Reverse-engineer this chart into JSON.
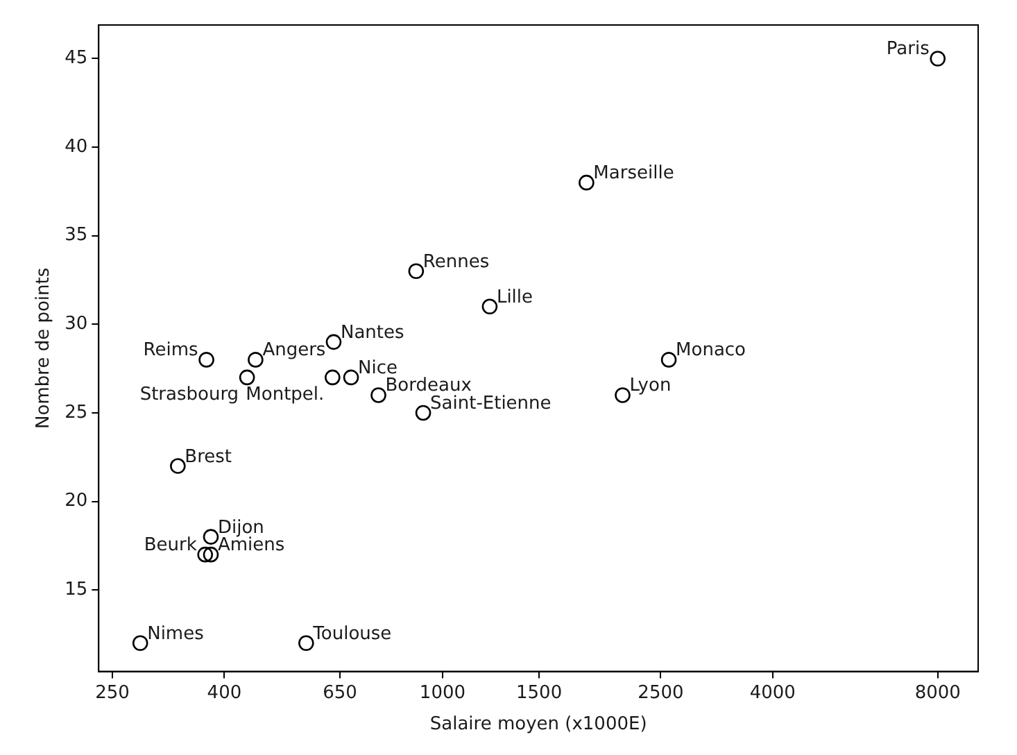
{
  "chart_data": {
    "type": "scatter",
    "xlabel": "Salaire moyen (x1000E)",
    "ylabel": "Nombre de points",
    "log": "x",
    "marker": "circle",
    "grid": false,
    "xlim": [
      236,
      9480
    ],
    "xticks": [
      250,
      400,
      650,
      1000,
      1500,
      2500,
      4000,
      8000
    ],
    "ylim": [
      10.4,
      46.9
    ],
    "yticks": [
      15,
      20,
      25,
      30,
      35,
      40,
      45
    ],
    "series": [
      {
        "color": "#000000",
        "x": [
          8000,
          1830,
          895,
          1219,
          2586,
          2130,
          371,
          456,
          633,
          440,
          630,
          681,
          764,
          922,
          329,
          378,
          378,
          369,
          281,
          564
        ],
        "values": [
          45,
          38,
          33,
          31,
          28,
          26,
          28,
          28,
          29,
          27,
          27,
          27,
          26,
          25,
          22,
          18,
          17,
          17,
          12,
          12
        ]
      }
    ],
    "annotations": [
      {
        "text": "Paris",
        "x": 8000,
        "y": 45
      },
      {
        "text": "Marseille",
        "x": 1830,
        "y": 38
      },
      {
        "text": "Rennes",
        "x": 895,
        "y": 33
      },
      {
        "text": "Lille",
        "x": 1219,
        "y": 31
      },
      {
        "text": "Monaco",
        "x": 2586,
        "y": 28
      },
      {
        "text": "Lyon",
        "x": 2130,
        "y": 26
      },
      {
        "text": "Reims",
        "x": 371,
        "y": 28
      },
      {
        "text": "Angers",
        "x": 456,
        "y": 28
      },
      {
        "text": "Nantes",
        "x": 633,
        "y": 29
      },
      {
        "text": "Strasbourg",
        "x": 440,
        "y": 27
      },
      {
        "text": "Nice",
        "x": 681,
        "y": 27
      },
      {
        "text": "Montpel.",
        "x": 630,
        "y": 27
      },
      {
        "text": "Bordeaux",
        "x": 764,
        "y": 26
      },
      {
        "text": "Saint-Etienne",
        "x": 922,
        "y": 25
      },
      {
        "text": "Brest",
        "x": 329,
        "y": 22
      },
      {
        "text": "Dijon",
        "x": 378,
        "y": 18
      },
      {
        "text": "Amiens",
        "x": 378,
        "y": 17
      },
      {
        "text": "Beurk",
        "x": 369,
        "y": 17
      },
      {
        "text": "Nimes",
        "x": 281,
        "y": 12
      },
      {
        "text": "Toulouse",
        "x": 564,
        "y": 12
      }
    ]
  }
}
